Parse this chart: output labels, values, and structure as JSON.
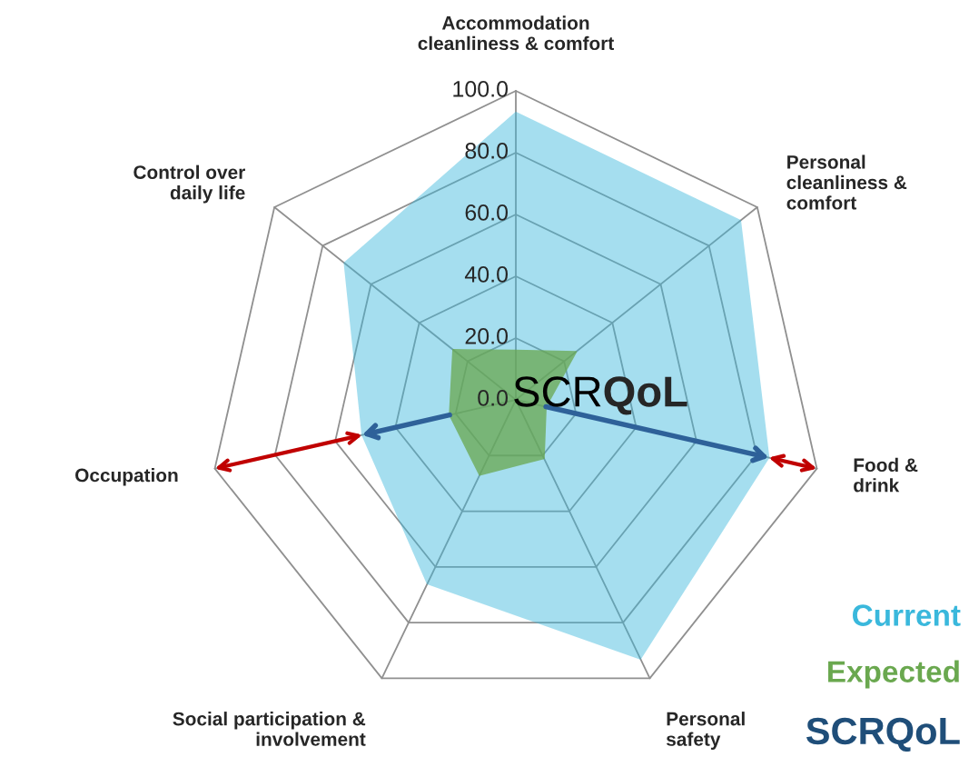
{
  "chart_data": {
    "type": "radar",
    "categories": [
      "Accommodation\ncleanliness & comfort",
      "Personal\ncleanliness &\ncomfort",
      "Food &\ndrink",
      "Personal\nsafety",
      "Social participation &\ninvolvement",
      "Occupation",
      "Control over\ndaily life"
    ],
    "series": [
      {
        "name": "Current",
        "color": "#3ab8dc",
        "values": [
          93,
          93,
          84,
          93,
          66,
          51,
          71
        ]
      },
      {
        "name": "Expected",
        "color": "#6aa84f",
        "values": [
          16,
          25,
          10,
          21,
          27,
          22,
          26
        ]
      }
    ],
    "ylim": [
      0,
      100
    ],
    "yticks": [
      {
        "value": 0,
        "label": "0.0"
      },
      {
        "value": 20,
        "label": "20.0"
      },
      {
        "value": 40,
        "label": "40.0"
      },
      {
        "value": 60,
        "label": "60.0"
      },
      {
        "value": 80,
        "label": "80.0"
      },
      {
        "value": 100,
        "label": "100.0"
      }
    ],
    "grid": true,
    "legend": "bottom right",
    "annotations": [
      "SCRQoL",
      "SCRQoL"
    ]
  }
}
